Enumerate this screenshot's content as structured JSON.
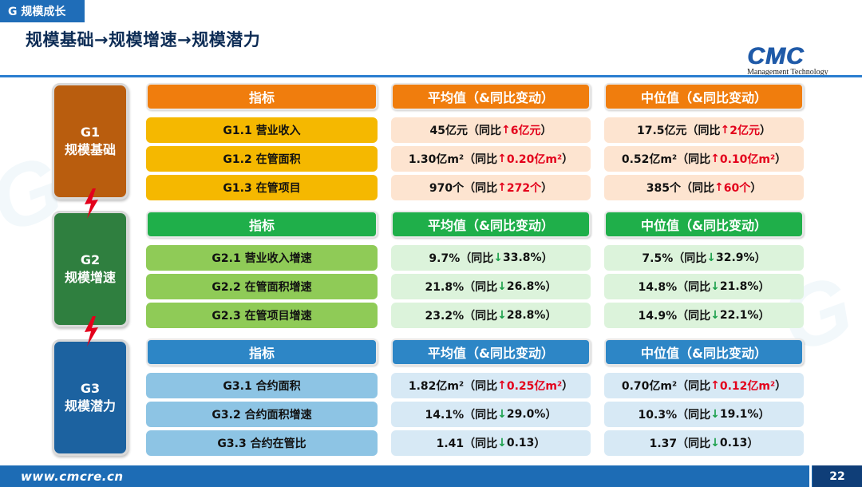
{
  "header": {
    "tag": "G 规模成长",
    "title": "规模基础→规模增速→规模潜力"
  },
  "logo": {
    "mark": "CMC",
    "sub": "Management Technology"
  },
  "colors": {
    "g1": "#b95d0e",
    "g2": "#2f7f3f",
    "g3": "#1c62a0",
    "increase": "#e3001b",
    "decrease": "#1aa04a"
  },
  "groups": [
    {
      "code": "G1",
      "name": "规模基础",
      "headers": [
        "指标",
        "平均值（&同比变动）",
        "中位值（&同比变动）"
      ],
      "rows": [
        {
          "indicator": "G1.1 营业收入",
          "avg": {
            "value": "45亿元（同比",
            "arrow": "↑",
            "dir": "up",
            "change": "6亿元",
            "tail": "）"
          },
          "med": {
            "value": "17.5亿元（同比",
            "arrow": "↑",
            "dir": "up",
            "change": "2亿元",
            "tail": "）"
          }
        },
        {
          "indicator": "G1.2 在管面积",
          "avg": {
            "value": "1.30亿m²（同比",
            "arrow": "↑",
            "dir": "up",
            "change": "0.20亿m²",
            "tail": "）"
          },
          "med": {
            "value": "0.52亿m²（同比",
            "arrow": "↑",
            "dir": "up",
            "change": "0.10亿m²",
            "tail": "）"
          }
        },
        {
          "indicator": "G1.3 在管项目",
          "avg": {
            "value": "970个（同比",
            "arrow": "↑",
            "dir": "up",
            "change": "272个",
            "tail": "）"
          },
          "med": {
            "value": "385个（同比",
            "arrow": "↑",
            "dir": "up",
            "change": "60个",
            "tail": "）"
          }
        }
      ]
    },
    {
      "code": "G2",
      "name": "规模增速",
      "headers": [
        "指标",
        "平均值（&同比变动）",
        "中位值（&同比变动）"
      ],
      "rows": [
        {
          "indicator": "G2.1 营业收入增速",
          "avg": {
            "value": "9.7%（同比",
            "arrow": "↓",
            "dir": "down",
            "change": "33.8%",
            "tail": "）"
          },
          "med": {
            "value": "7.5%（同比",
            "arrow": "↓",
            "dir": "down",
            "change": "32.9%",
            "tail": "）"
          }
        },
        {
          "indicator": "G2.2 在管面积增速",
          "avg": {
            "value": "21.8%（同比",
            "arrow": "↓",
            "dir": "down",
            "change": "26.8%",
            "tail": "）"
          },
          "med": {
            "value": "14.8%（同比",
            "arrow": "↓",
            "dir": "down",
            "change": "21.8%",
            "tail": "）"
          }
        },
        {
          "indicator": "G2.3 在管项目增速",
          "avg": {
            "value": "23.2%（同比",
            "arrow": "↓",
            "dir": "down",
            "change": "28.8%",
            "tail": "）"
          },
          "med": {
            "value": "14.9%（同比",
            "arrow": "↓",
            "dir": "down",
            "change": "22.1%",
            "tail": "）"
          }
        }
      ]
    },
    {
      "code": "G3",
      "name": "规模潜力",
      "headers": [
        "指标",
        "平均值（&同比变动）",
        "中位值（&同比变动）"
      ],
      "rows": [
        {
          "indicator": "G3.1 合约面积",
          "avg": {
            "value": "1.82亿m²（同比",
            "arrow": "↑",
            "dir": "up",
            "change": "0.25亿m²",
            "tail": "）"
          },
          "med": {
            "value": "0.70亿m²（同比",
            "arrow": "↑",
            "dir": "up",
            "change": "0.12亿m²",
            "tail": "）"
          }
        },
        {
          "indicator": "G3.2 合约面积增速",
          "avg": {
            "value": "14.1%（同比",
            "arrow": "↓",
            "dir": "down",
            "change": "29.0%",
            "tail": "）"
          },
          "med": {
            "value": "10.3%（同比",
            "arrow": "↓",
            "dir": "down",
            "change": "19.1%",
            "tail": "）"
          }
        },
        {
          "indicator": "G3.3 合约在管比",
          "avg": {
            "value": "1.41（同比",
            "arrow": "↓",
            "dir": "down",
            "change": "0.13",
            "tail": "）"
          },
          "med": {
            "value": "1.37（同比",
            "arrow": "↓",
            "dir": "down",
            "change": "0.13",
            "tail": "）"
          }
        }
      ]
    }
  ],
  "footer": {
    "url": "www.cmcre.cn",
    "page": "22"
  }
}
